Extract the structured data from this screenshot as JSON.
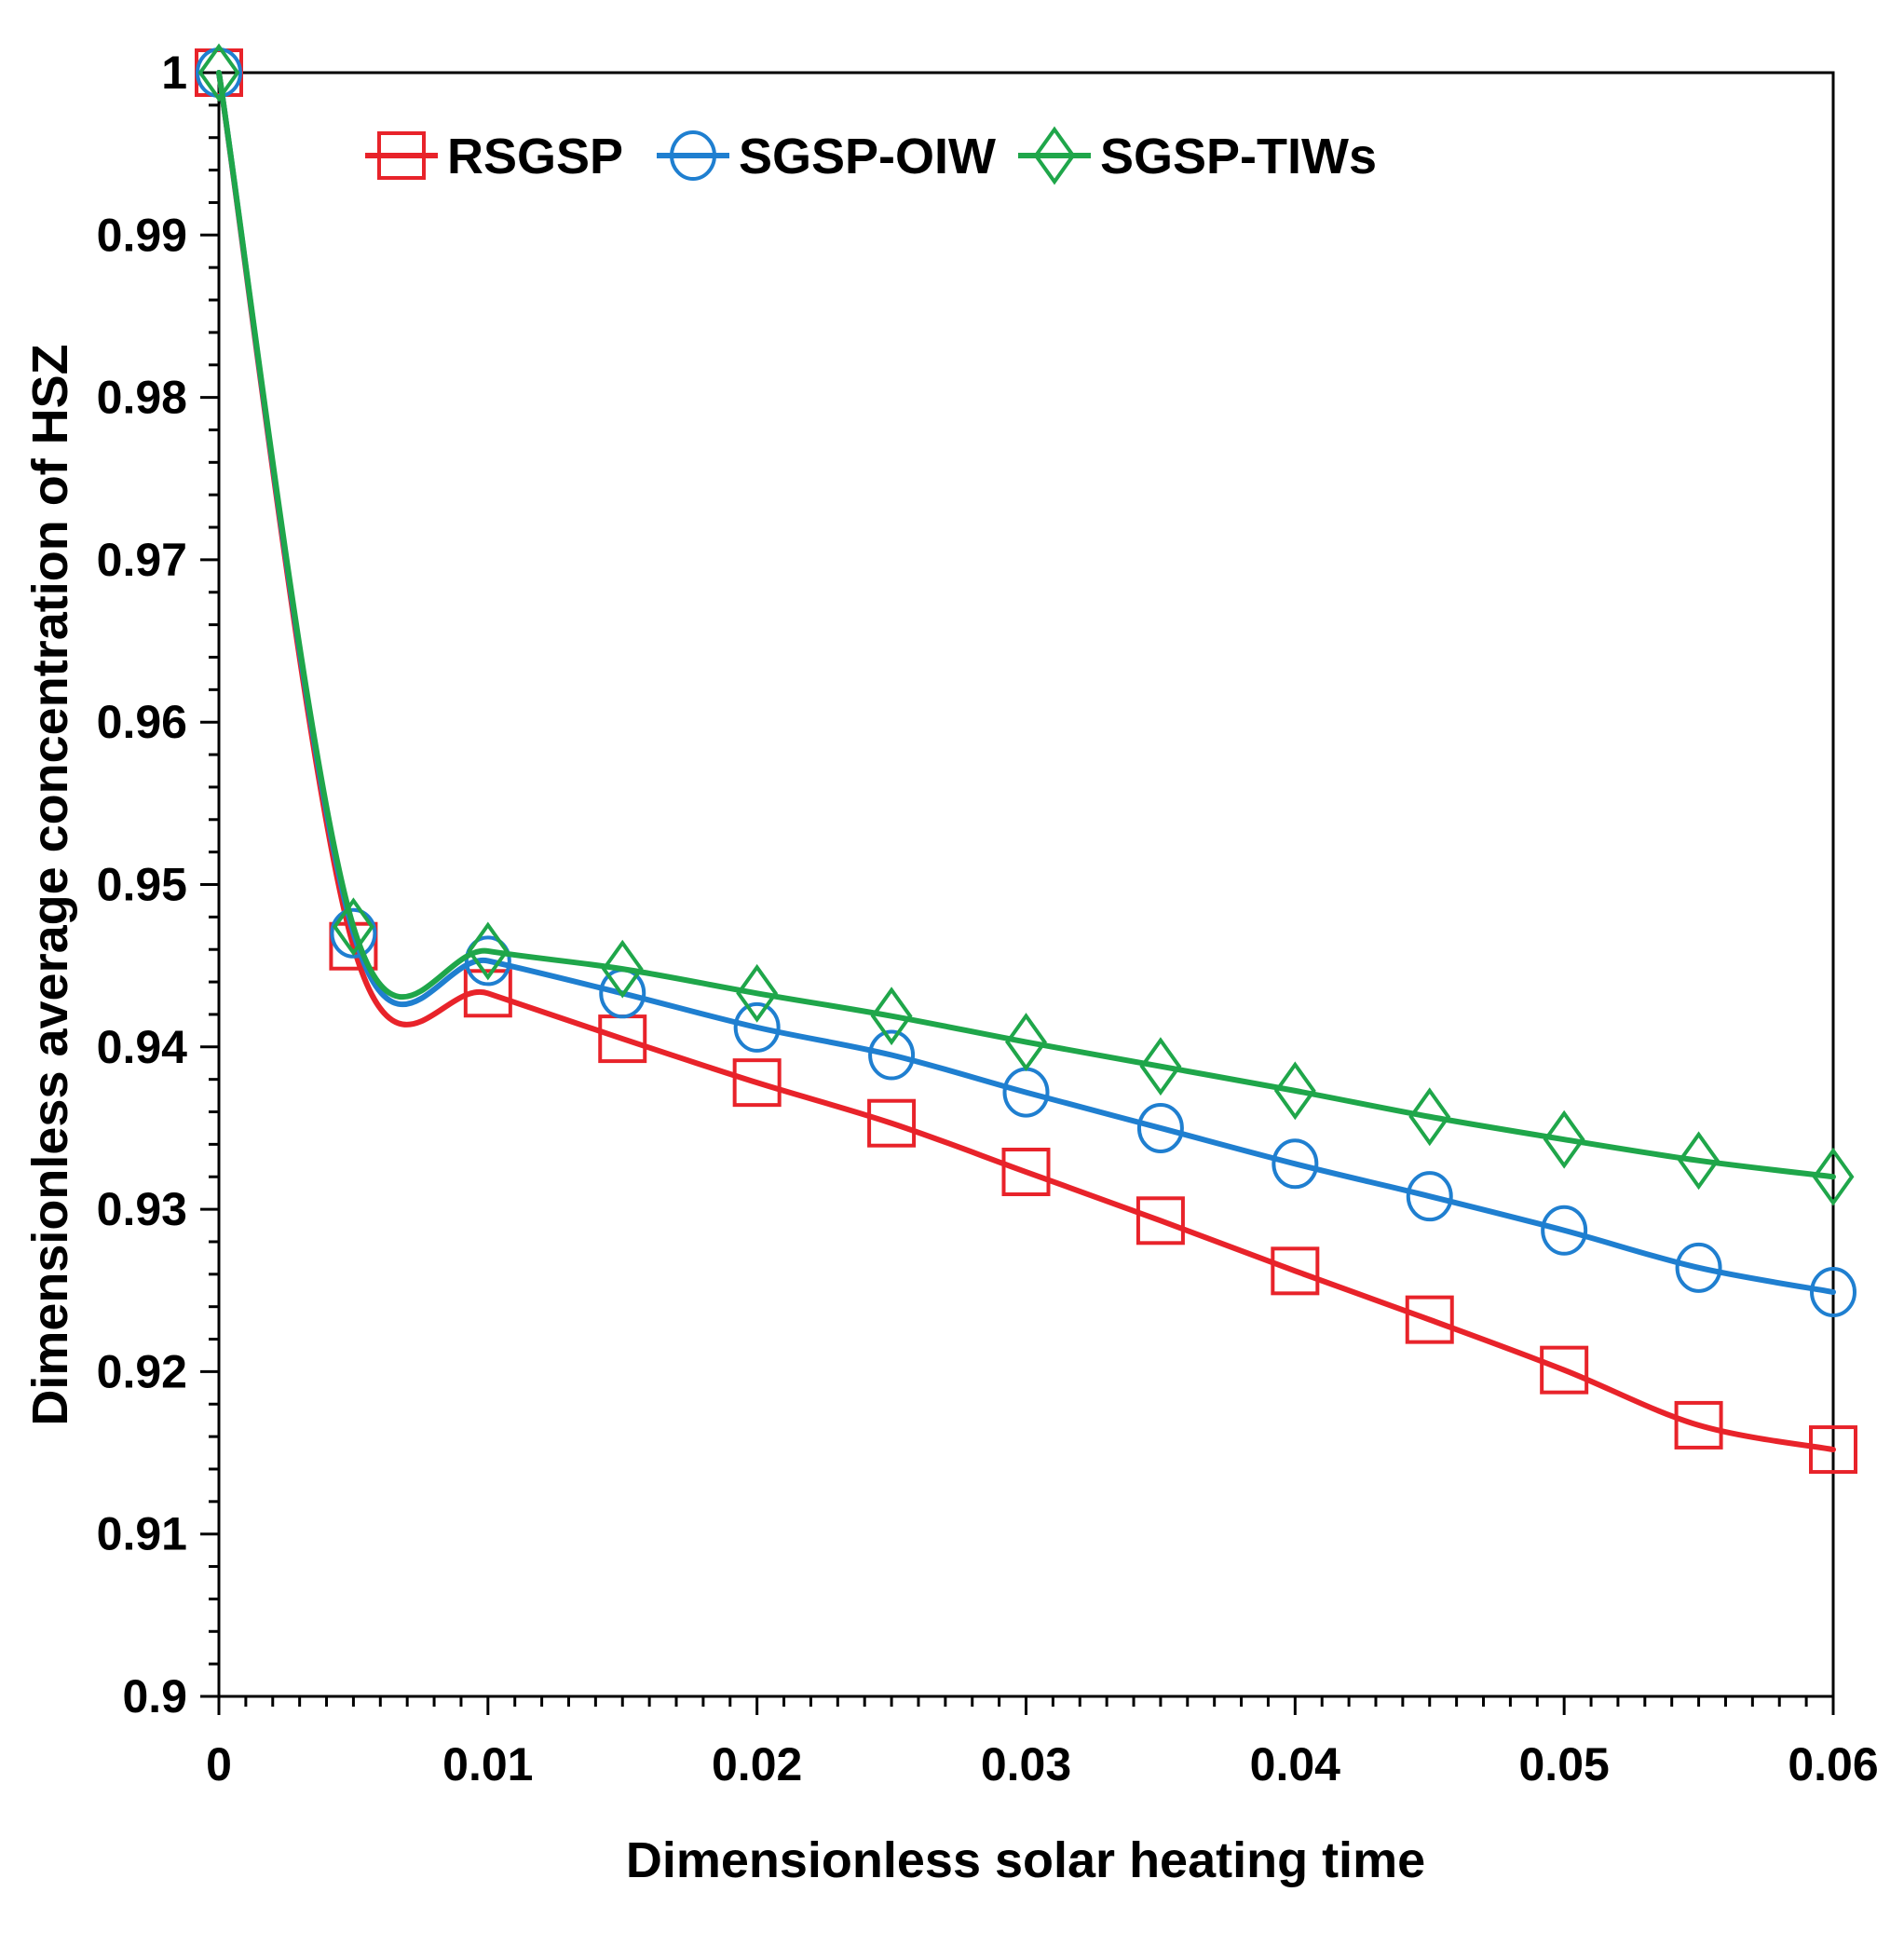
{
  "chart_data": {
    "type": "line",
    "title": "",
    "xlabel": "Dimensionless solar heating time",
    "ylabel": "Dimensionless average concentration of HSZ",
    "xlim": [
      0,
      0.06
    ],
    "ylim": [
      0.9,
      1.0
    ],
    "x_ticks": [
      0,
      0.01,
      0.02,
      0.03,
      0.04,
      0.05,
      0.06
    ],
    "x_tick_labels": [
      "0",
      "0.01",
      "0.02",
      "0.03",
      "0.04",
      "0.05",
      "0.06"
    ],
    "y_ticks": [
      0.9,
      0.91,
      0.92,
      0.93,
      0.94,
      0.95,
      0.96,
      0.97,
      0.98,
      0.99,
      1.0
    ],
    "y_tick_labels": [
      "0.9",
      "0.91",
      "0.92",
      "0.93",
      "0.94",
      "0.95",
      "0.96",
      "0.97",
      "0.98",
      "0.99",
      "1"
    ],
    "grid": false,
    "legend_position": "top-left",
    "x": [
      0,
      0.005,
      0.01,
      0.015,
      0.02,
      0.025,
      0.03,
      0.035,
      0.04,
      0.045,
      0.05,
      0.055,
      0.06
    ],
    "series": [
      {
        "name": "RSGSP",
        "color": "#e8232a",
        "marker": "square",
        "values": [
          1.0,
          0.9462,
          0.9433,
          0.9405,
          0.9378,
          0.9353,
          0.9323,
          0.9293,
          0.9262,
          0.9232,
          0.9201,
          0.9167,
          0.9152
        ]
      },
      {
        "name": "SGSP-OIW",
        "color": "#1f7fd0",
        "marker": "circle",
        "values": [
          1.0,
          0.947,
          0.9453,
          0.9433,
          0.9412,
          0.9395,
          0.9372,
          0.935,
          0.9328,
          0.9308,
          0.9287,
          0.9264,
          0.9249
        ]
      },
      {
        "name": "SGSP-TIWs",
        "color": "#1fa64a",
        "marker": "diamond",
        "values": [
          1.0,
          0.9474,
          0.9459,
          0.9448,
          0.9433,
          0.9419,
          0.9403,
          0.9388,
          0.9373,
          0.9357,
          0.9343,
          0.933,
          0.932
        ]
      }
    ]
  }
}
